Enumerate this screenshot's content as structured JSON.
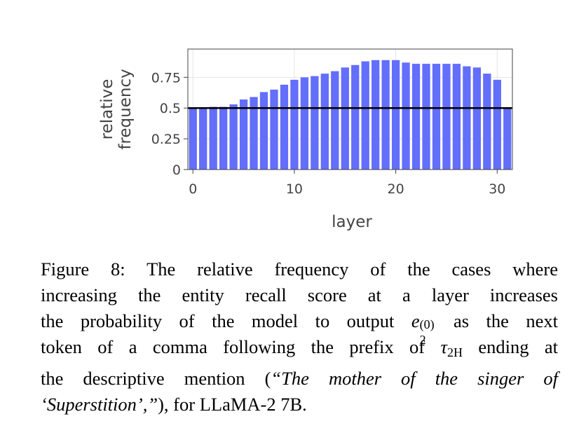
{
  "chart_data": {
    "type": "bar",
    "title": "",
    "xlabel": "layer",
    "ylabel_lines": [
      "relative",
      "frequency"
    ],
    "x": [
      0,
      1,
      2,
      3,
      4,
      5,
      6,
      7,
      8,
      9,
      10,
      11,
      12,
      13,
      14,
      15,
      16,
      17,
      18,
      19,
      20,
      21,
      22,
      23,
      24,
      25,
      26,
      27,
      28,
      29,
      30,
      31
    ],
    "values": [
      0.5,
      0.5,
      0.51,
      0.51,
      0.53,
      0.57,
      0.59,
      0.63,
      0.65,
      0.69,
      0.73,
      0.75,
      0.76,
      0.78,
      0.8,
      0.83,
      0.85,
      0.88,
      0.89,
      0.89,
      0.89,
      0.87,
      0.86,
      0.86,
      0.86,
      0.86,
      0.86,
      0.84,
      0.83,
      0.78,
      0.73,
      0.5
    ],
    "xticks": [
      0,
      10,
      20,
      30
    ],
    "xtick_labels": [
      "0",
      "10",
      "20",
      "30"
    ],
    "yticks": [
      0,
      0.25,
      0.5,
      0.75
    ],
    "ytick_labels": [
      "0",
      "0.25",
      "0.5",
      "0.75"
    ],
    "xlim": [
      -0.5,
      31.5
    ],
    "ylim": [
      0,
      0.98
    ],
    "reference_line": 0.5,
    "bar_color": "#636efa",
    "line_color": "#000000",
    "grid": true
  },
  "caption": {
    "line1": "Figure 8: The relative frequency of the cases where",
    "line2": "increasing the entity recall score at a layer increases",
    "line3_before": "the probability of the model to output ",
    "line3_var": "e",
    "line3_sub": "2",
    "line3_sup": "(0)",
    "line3_after": " as the next",
    "line4_before": "token of a comma following the prefix of ",
    "line4_var": "τ",
    "line4_sub": "2H",
    "line4_after": " ending at",
    "line5_before": "the descriptive mention (",
    "line5_italic": "“The mother of the singer of",
    "line6_italic": "‘Superstition’,”",
    "line6_after": "), for LLaMA-2 7B."
  }
}
